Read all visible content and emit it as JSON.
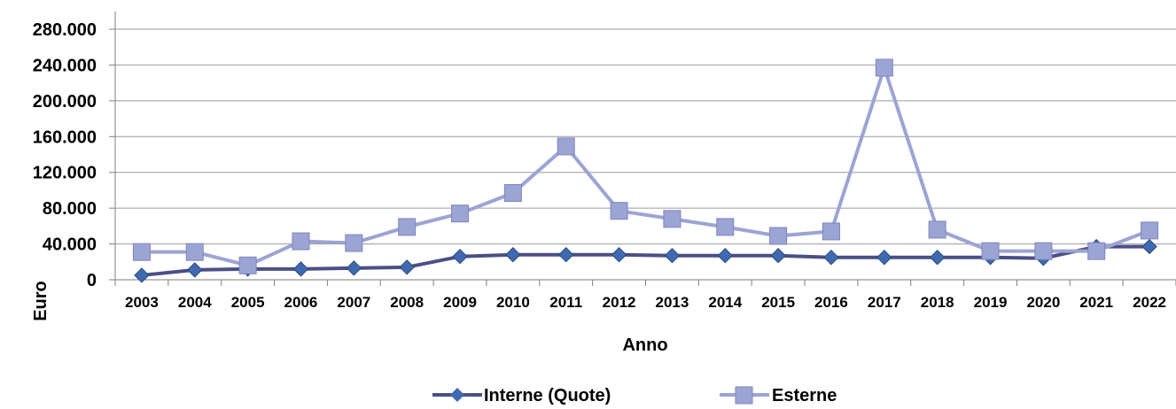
{
  "chart_data": {
    "type": "line",
    "xlabel": "Anno",
    "ylabel": "Euro",
    "ylim": [
      0,
      280000
    ],
    "yticks": [
      0,
      40000,
      80000,
      120000,
      160000,
      200000,
      240000,
      280000
    ],
    "ytick_labels": [
      "0",
      "40.000",
      "80.000",
      "120.000",
      "160.000",
      "200.000",
      "240.000",
      "280.000"
    ],
    "grid": "horizontal",
    "legend_position": "bottom",
    "categories": [
      "2003",
      "2004",
      "2005",
      "2006",
      "2007",
      "2008",
      "2009",
      "2010",
      "2011",
      "2012",
      "2013",
      "2014",
      "2015",
      "2016",
      "2017",
      "2018",
      "2019",
      "2020",
      "2021",
      "2022"
    ],
    "series": [
      {
        "name": "Interne (Quote)",
        "color": "#4b4f86",
        "marker_color": "#3f6ab0",
        "marker": "diamond",
        "values": [
          5000,
          11000,
          12000,
          12000,
          13000,
          14000,
          26000,
          28000,
          28000,
          28000,
          27000,
          27000,
          27000,
          25000,
          25000,
          25000,
          25000,
          24000,
          37000,
          37000
        ]
      },
      {
        "name": "Esterne",
        "color": "#9ca4d3",
        "marker_color": "#9ca4d3",
        "marker": "square",
        "values": [
          31000,
          31000,
          16000,
          43000,
          41000,
          59000,
          74000,
          97000,
          149000,
          77000,
          68000,
          59000,
          49000,
          54000,
          237000,
          56000,
          32000,
          32000,
          32000,
          55000
        ]
      }
    ]
  }
}
